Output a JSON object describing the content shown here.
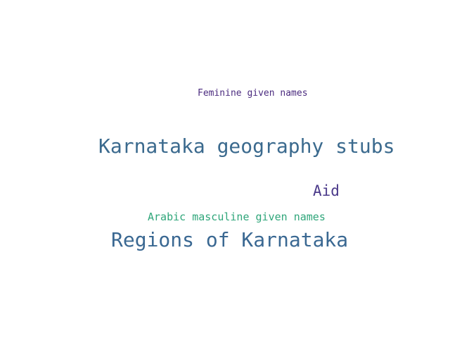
{
  "word_cloud": {
    "words": [
      {
        "text": "Feminine given names",
        "color": "#4b2b7f"
      },
      {
        "text": "Karnataka geography stubs",
        "color": "#3b6a8e"
      },
      {
        "text": "Aid",
        "color": "#4b3a8a"
      },
      {
        "text": "Arabic masculine given names",
        "color": "#2fa67a"
      },
      {
        "text": "Regions of Karnataka",
        "color": "#3a6892"
      }
    ]
  }
}
